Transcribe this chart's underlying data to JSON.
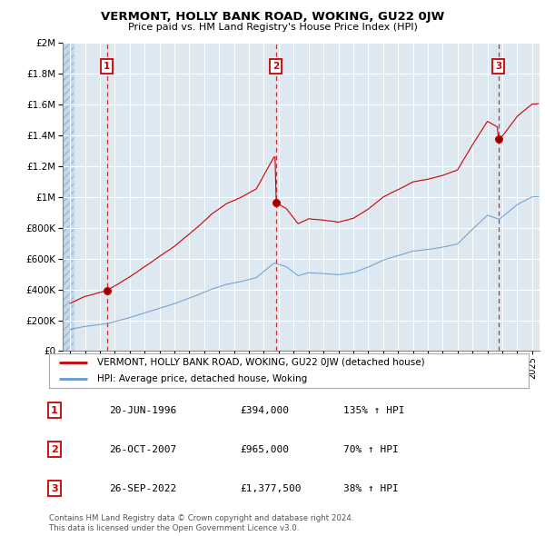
{
  "title": "VERMONT, HOLLY BANK ROAD, WOKING, GU22 0JW",
  "subtitle": "Price paid vs. HM Land Registry's House Price Index (HPI)",
  "legend_line1": "VERMONT, HOLLY BANK ROAD, WOKING, GU22 0JW (detached house)",
  "legend_line2": "HPI: Average price, detached house, Woking",
  "footer1": "Contains HM Land Registry data © Crown copyright and database right 2024.",
  "footer2": "This data is licensed under the Open Government Licence v3.0.",
  "sales": [
    {
      "num": 1,
      "date_x": 1996.47,
      "price": 394000
    },
    {
      "num": 2,
      "date_x": 2007.82,
      "price": 965000
    },
    {
      "num": 3,
      "date_x": 2022.74,
      "price": 1377500
    }
  ],
  "table_rows": [
    {
      "num": 1,
      "date": "20-JUN-1996",
      "price": "£394,000",
      "pct": "135% ↑ HPI"
    },
    {
      "num": 2,
      "date": "26-OCT-2007",
      "price": "£965,000",
      "pct": "70% ↑ HPI"
    },
    {
      "num": 3,
      "date": "26-SEP-2022",
      "price": "£1,377,500",
      "pct": "38% ↑ HPI"
    }
  ],
  "ylim": [
    0,
    2000000
  ],
  "xlim_start": 1993.5,
  "xlim_end": 2025.5,
  "red_color": "#cc0000",
  "blue_color": "#6699cc",
  "grid_color": "#cccccc",
  "bg_color": "#dde8f0",
  "hatch_end": 1994.0
}
